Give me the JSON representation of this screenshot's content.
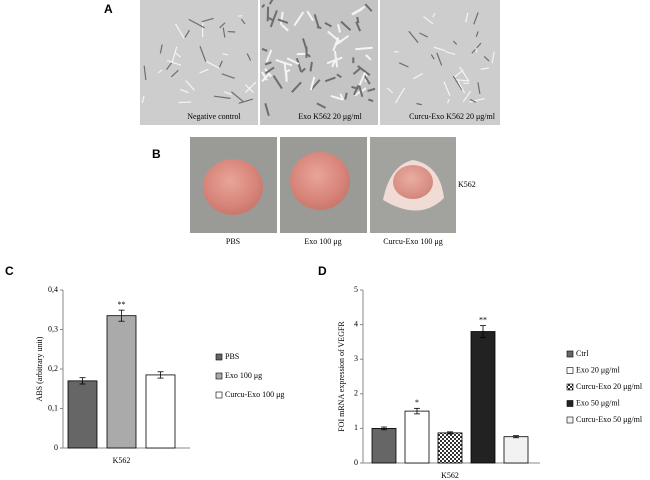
{
  "panel_a": {
    "label": "A",
    "captions": [
      "Negative control",
      "Exo K562 20 μg/ml",
      "Curcu-Exo K562 20 μg/ml"
    ]
  },
  "panel_b": {
    "label": "B",
    "row_label": "K562",
    "captions": [
      "PBS",
      "Exo 100 μg",
      "Curcu-Exo 100 μg"
    ]
  },
  "chart_data": [
    {
      "type": "bar",
      "panel_label": "C",
      "ylabel": "ABS (arbitrary unit)",
      "categories": [
        "K562"
      ],
      "ylim": [
        0,
        0.4
      ],
      "yticks": [
        0,
        {
          "value": 0.1,
          "label": "0,1"
        },
        {
          "value": 0.2,
          "label": "0,2"
        },
        {
          "value": 0.3,
          "label": "0,3"
        },
        {
          "value": 0.4,
          "label": "0,4"
        }
      ],
      "legend": "right",
      "series": [
        {
          "name": "PBS",
          "color": "#666666",
          "values": [
            0.17
          ],
          "errors": [
            0.008
          ]
        },
        {
          "name": "Exo 100 μg",
          "color": "#aaaaaa",
          "values": [
            0.335
          ],
          "errors": [
            0.014
          ],
          "significance": "**"
        },
        {
          "name": "Curcu-Exo 100 μg",
          "color": "#ffffff",
          "values": [
            0.185
          ],
          "errors": [
            0.008
          ]
        }
      ]
    },
    {
      "type": "bar",
      "panel_label": "D",
      "ylabel": "FOI mRNA expression of  VEGFR",
      "categories": [
        "K562"
      ],
      "ylim": [
        0,
        5
      ],
      "yticks": [
        0,
        1,
        2,
        3,
        4,
        5
      ],
      "legend": "right",
      "series": [
        {
          "name": "Ctrl",
          "color": "#666666",
          "values": [
            1.0
          ],
          "errors": [
            0.04
          ]
        },
        {
          "name": "Exo 20 μg/ml",
          "color": "#ffffff",
          "values": [
            1.5
          ],
          "errors": [
            0.08
          ],
          "significance": "*"
        },
        {
          "name": "Curcu-Exo  20 μg/ml",
          "color": "#333333",
          "pattern": "checkered",
          "values": [
            0.87
          ],
          "errors": [
            0.03
          ]
        },
        {
          "name": "Exo  50 μg/ml",
          "color": "#222222",
          "values": [
            3.8
          ],
          "errors": [
            0.17
          ],
          "significance": "**"
        },
        {
          "name": "Curcu-Exo 50 μg/ml",
          "color": "#f2f2f2",
          "values": [
            0.76
          ],
          "errors": [
            0.03
          ]
        }
      ]
    }
  ]
}
